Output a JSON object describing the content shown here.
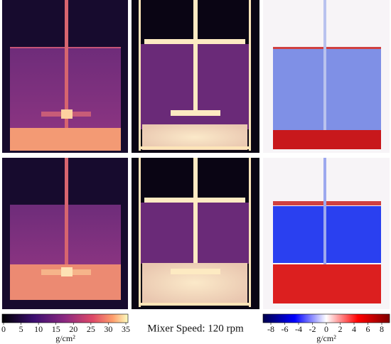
{
  "colorbars": [
    {
      "ticks": [
        0,
        5,
        10,
        15,
        20,
        25,
        30,
        35
      ],
      "unit": "g/cm²"
    },
    {
      "ticks": [
        -8,
        -6,
        -4,
        -2,
        0,
        2,
        4,
        6,
        8
      ],
      "unit": "g/cm²"
    }
  ],
  "caption": "Mixer Speed: 120 rpm"
}
